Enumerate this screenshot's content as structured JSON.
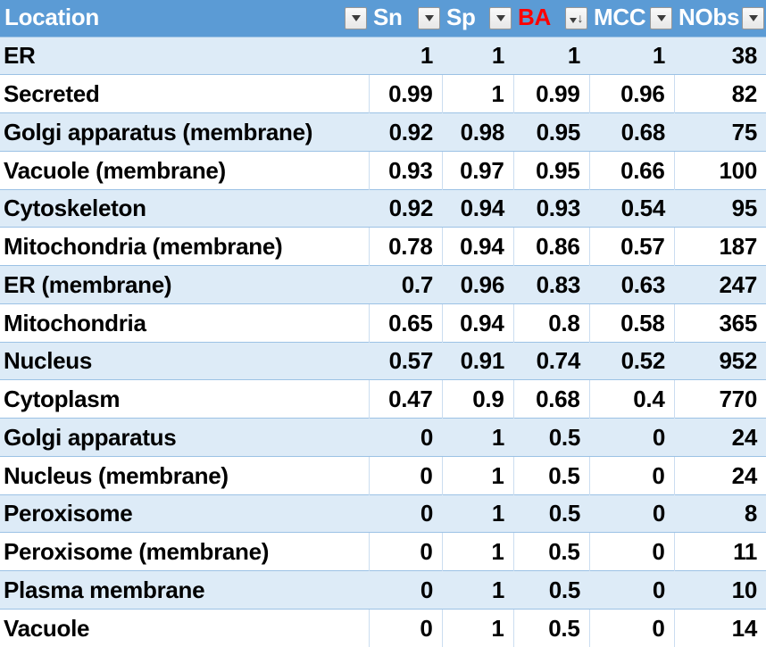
{
  "colors": {
    "header_bg": "#5B9BD5",
    "header_text": "#FFFFFF",
    "ba_header_text": "#FF0000",
    "band_row_bg": "#DDEBF7",
    "white_row_bg": "#FFFFFF",
    "row_separator": "#9CC2E5",
    "column_separator": "#CBDDF0",
    "cell_text": "#000000"
  },
  "table": {
    "columns": [
      {
        "key": "location",
        "label": "Location",
        "align": "left",
        "sort": null,
        "filter_icon": "filter-dropdown-icon"
      },
      {
        "key": "sn",
        "label": "Sn",
        "align": "right",
        "sort": null,
        "filter_icon": "filter-dropdown-icon"
      },
      {
        "key": "sp",
        "label": "Sp",
        "align": "right",
        "sort": null,
        "filter_icon": "filter-dropdown-icon"
      },
      {
        "key": "ba",
        "label": "BA",
        "align": "right",
        "sort": "descending",
        "filter_icon": "filter-dropdown-sort-descending-icon"
      },
      {
        "key": "mcc",
        "label": "MCC",
        "align": "right",
        "sort": null,
        "filter_icon": "filter-dropdown-icon"
      },
      {
        "key": "nobs",
        "label": "NObs",
        "align": "right",
        "sort": null,
        "filter_icon": "filter-dropdown-icon"
      }
    ],
    "rows": [
      {
        "location": "ER",
        "sn": "1",
        "sp": "1",
        "ba": "1",
        "mcc": "1",
        "nobs": "38"
      },
      {
        "location": "Secreted",
        "sn": "0.99",
        "sp": "1",
        "ba": "0.99",
        "mcc": "0.96",
        "nobs": "82"
      },
      {
        "location": "Golgi apparatus (membrane)",
        "sn": "0.92",
        "sp": "0.98",
        "ba": "0.95",
        "mcc": "0.68",
        "nobs": "75"
      },
      {
        "location": "Vacuole (membrane)",
        "sn": "0.93",
        "sp": "0.97",
        "ba": "0.95",
        "mcc": "0.66",
        "nobs": "100"
      },
      {
        "location": "Cytoskeleton",
        "sn": "0.92",
        "sp": "0.94",
        "ba": "0.93",
        "mcc": "0.54",
        "nobs": "95"
      },
      {
        "location": "Mitochondria (membrane)",
        "sn": "0.78",
        "sp": "0.94",
        "ba": "0.86",
        "mcc": "0.57",
        "nobs": "187"
      },
      {
        "location": "ER (membrane)",
        "sn": "0.7",
        "sp": "0.96",
        "ba": "0.83",
        "mcc": "0.63",
        "nobs": "247"
      },
      {
        "location": "Mitochondria",
        "sn": "0.65",
        "sp": "0.94",
        "ba": "0.8",
        "mcc": "0.58",
        "nobs": "365"
      },
      {
        "location": "Nucleus",
        "sn": "0.57",
        "sp": "0.91",
        "ba": "0.74",
        "mcc": "0.52",
        "nobs": "952"
      },
      {
        "location": "Cytoplasm",
        "sn": "0.47",
        "sp": "0.9",
        "ba": "0.68",
        "mcc": "0.4",
        "nobs": "770"
      },
      {
        "location": "Golgi apparatus",
        "sn": "0",
        "sp": "1",
        "ba": "0.5",
        "mcc": "0",
        "nobs": "24"
      },
      {
        "location": "Nucleus (membrane)",
        "sn": "0",
        "sp": "1",
        "ba": "0.5",
        "mcc": "0",
        "nobs": "24"
      },
      {
        "location": "Peroxisome",
        "sn": "0",
        "sp": "1",
        "ba": "0.5",
        "mcc": "0",
        "nobs": "8"
      },
      {
        "location": "Peroxisome (membrane)",
        "sn": "0",
        "sp": "1",
        "ba": "0.5",
        "mcc": "0",
        "nobs": "11"
      },
      {
        "location": "Plasma membrane",
        "sn": "0",
        "sp": "1",
        "ba": "0.5",
        "mcc": "0",
        "nobs": "10"
      },
      {
        "location": "Vacuole",
        "sn": "0",
        "sp": "1",
        "ba": "0.5",
        "mcc": "0",
        "nobs": "14"
      }
    ]
  }
}
